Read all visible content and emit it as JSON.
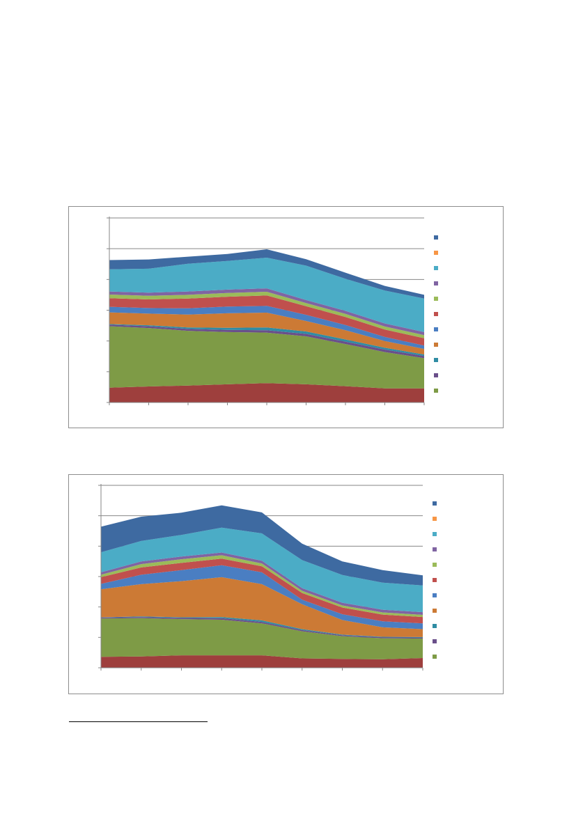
{
  "palette": {
    "s1": "#9e3f3d",
    "s2": "#7e9b46",
    "s3": "#6a4f8a",
    "s4": "#2f8ca3",
    "s5": "#cc7a35",
    "s6": "#4a7ec2",
    "s7": "#c0504d",
    "s8": "#9bbb59",
    "s9": "#8064a2",
    "s10": "#4bacc6",
    "s11": "#f79646",
    "s12": "#3e6aa1"
  },
  "chart_data": [
    {
      "type": "area",
      "stacked": true,
      "grid": true,
      "legend_position": "right",
      "y_tick_count": 6,
      "ylim": [
        0,
        6
      ],
      "x": [
        0,
        1,
        2,
        3,
        4,
        5,
        6,
        7,
        8
      ],
      "series": [
        {
          "color_key": "s1",
          "values": [
            0.48,
            0.52,
            0.55,
            0.59,
            0.63,
            0.59,
            0.53,
            0.46,
            0.46
          ]
        },
        {
          "color_key": "s2",
          "values": [
            2.0,
            1.9,
            1.78,
            1.7,
            1.64,
            1.56,
            1.37,
            1.18,
            0.98
          ]
        },
        {
          "color_key": "s3",
          "values": [
            0.05,
            0.06,
            0.06,
            0.07,
            0.08,
            0.08,
            0.08,
            0.08,
            0.07
          ]
        },
        {
          "color_key": "s4",
          "values": [
            0.02,
            0.03,
            0.05,
            0.07,
            0.09,
            0.08,
            0.07,
            0.06,
            0.05
          ]
        },
        {
          "color_key": "s5",
          "values": [
            0.38,
            0.38,
            0.42,
            0.47,
            0.48,
            0.34,
            0.3,
            0.22,
            0.18
          ]
        },
        {
          "color_key": "s6",
          "values": [
            0.18,
            0.18,
            0.2,
            0.22,
            0.22,
            0.2,
            0.17,
            0.13,
            0.11
          ]
        },
        {
          "color_key": "s7",
          "values": [
            0.28,
            0.28,
            0.32,
            0.32,
            0.34,
            0.28,
            0.26,
            0.24,
            0.24
          ]
        },
        {
          "color_key": "s8",
          "values": [
            0.12,
            0.12,
            0.12,
            0.12,
            0.12,
            0.1,
            0.1,
            0.1,
            0.1
          ]
        },
        {
          "color_key": "s9",
          "values": [
            0.1,
            0.1,
            0.11,
            0.11,
            0.11,
            0.1,
            0.1,
            0.1,
            0.1
          ]
        },
        {
          "color_key": "s10",
          "values": [
            0.72,
            0.78,
            0.9,
            0.93,
            1.0,
            1.12,
            1.04,
            1.07,
            1.09
          ]
        },
        {
          "color_key": "s11",
          "values": [
            0.0,
            0.0,
            0.0,
            0.0,
            0.0,
            0.0,
            0.0,
            0.0,
            0.0
          ]
        },
        {
          "color_key": "s12",
          "values": [
            0.3,
            0.3,
            0.23,
            0.23,
            0.27,
            0.21,
            0.2,
            0.15,
            0.12
          ]
        }
      ],
      "legend_order": [
        "s12",
        "s11",
        "s10",
        "s9",
        "s8",
        "s7",
        "s6",
        "s5",
        "s4",
        "s3",
        "s2"
      ]
    },
    {
      "type": "area",
      "stacked": true,
      "grid": true,
      "legend_position": "right",
      "y_tick_count": 6,
      "ylim": [
        0,
        6
      ],
      "x": [
        0,
        1,
        2,
        3,
        4,
        5,
        6,
        7,
        8
      ],
      "series": [
        {
          "color_key": "s1",
          "values": [
            0.36,
            0.37,
            0.41,
            0.41,
            0.41,
            0.31,
            0.29,
            0.28,
            0.32
          ]
        },
        {
          "color_key": "s2",
          "values": [
            1.26,
            1.26,
            1.19,
            1.17,
            1.05,
            0.89,
            0.75,
            0.69,
            0.64
          ]
        },
        {
          "color_key": "s3",
          "values": [
            0.03,
            0.04,
            0.04,
            0.05,
            0.05,
            0.04,
            0.03,
            0.03,
            0.03
          ]
        },
        {
          "color_key": "s4",
          "values": [
            0.01,
            0.02,
            0.02,
            0.04,
            0.05,
            0.03,
            0.02,
            0.02,
            0.02
          ]
        },
        {
          "color_key": "s5",
          "values": [
            0.92,
            1.06,
            1.19,
            1.31,
            1.19,
            0.82,
            0.48,
            0.31,
            0.26
          ]
        },
        {
          "color_key": "s6",
          "values": [
            0.18,
            0.31,
            0.36,
            0.39,
            0.39,
            0.15,
            0.19,
            0.2,
            0.19
          ]
        },
        {
          "color_key": "s7",
          "values": [
            0.22,
            0.24,
            0.24,
            0.22,
            0.2,
            0.22,
            0.22,
            0.22,
            0.21
          ]
        },
        {
          "color_key": "s8",
          "values": [
            0.08,
            0.11,
            0.12,
            0.11,
            0.09,
            0.07,
            0.07,
            0.07,
            0.07
          ]
        },
        {
          "color_key": "s9",
          "values": [
            0.08,
            0.09,
            0.09,
            0.09,
            0.09,
            0.09,
            0.09,
            0.09,
            0.09
          ]
        },
        {
          "color_key": "s10",
          "values": [
            0.66,
            0.67,
            0.71,
            0.82,
            0.9,
            0.92,
            0.91,
            0.89,
            0.88
          ]
        },
        {
          "color_key": "s11",
          "values": [
            0.0,
            0.0,
            0.0,
            0.0,
            0.0,
            0.0,
            0.0,
            0.0,
            0.0
          ]
        },
        {
          "color_key": "s12",
          "values": [
            0.84,
            0.8,
            0.73,
            0.73,
            0.69,
            0.54,
            0.45,
            0.41,
            0.33
          ]
        }
      ],
      "legend_order": [
        "s12",
        "s11",
        "s10",
        "s9",
        "s8",
        "s7",
        "s6",
        "s5",
        "s4",
        "s3",
        "s2"
      ]
    }
  ]
}
